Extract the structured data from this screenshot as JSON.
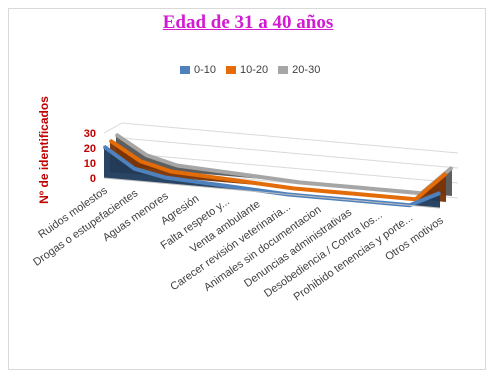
{
  "chart_data": {
    "type": "area",
    "title": "Edad de 31 a 40 años",
    "ylabel": "Nº de identificados",
    "ylim": [
      0,
      30
    ],
    "yticks": [
      0,
      10,
      20,
      30
    ],
    "categories": [
      "Ruidos molestos",
      "Drogas o estupefacientes",
      "Aguas menores",
      "Agresión",
      "Falta respeto y...",
      "Venta ambulante",
      "Carecer revisión veterinaria...",
      "Animales sin documentacion",
      "Denuncias administrativas",
      "Desobediencia / Contra los...",
      "Prohibido tenencias y porte...",
      "Otros motivos"
    ],
    "series": [
      {
        "name": "0-10",
        "values": [
          21,
          8,
          4,
          3,
          2,
          1,
          0,
          0,
          0,
          0,
          0,
          10
        ],
        "color": "#4f81bd"
      },
      {
        "name": "10-20",
        "values": [
          21,
          9,
          4,
          3,
          2,
          1,
          0,
          0,
          0,
          0,
          0,
          19
        ],
        "color": "#e36c09"
      },
      {
        "name": "20-30",
        "values": [
          21,
          9,
          4,
          3,
          2,
          1,
          0,
          0,
          0,
          0,
          0,
          19
        ],
        "color": "#a6a6a6"
      }
    ],
    "legend_position": "top",
    "grid": true
  }
}
